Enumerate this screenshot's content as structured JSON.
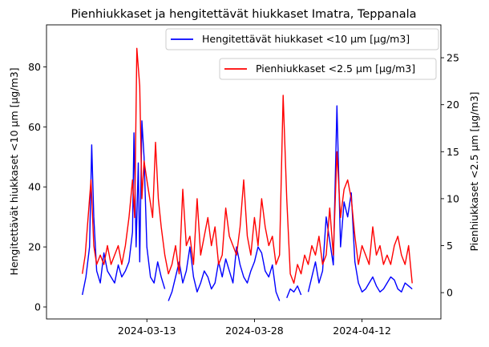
{
  "chart_data": {
    "type": "line",
    "title": "Pienhiukkaset ja hengitettävät hiukkaset Imatra, Teppanala",
    "x_tick_labels": [
      "2024-03-13",
      "2024-03-28",
      "2024-04-12"
    ],
    "left_axis": {
      "label": "Hengitettävät hiukkaset <10 µm [µg/m3]",
      "ylim": [
        -4,
        94
      ],
      "ticks": [
        "0",
        "20",
        "40",
        "60",
        "80"
      ]
    },
    "right_axis": {
      "label": "Pienhiukkaset <2.5 µm [µg/m3]",
      "ylim": [
        -2.8,
        28.5
      ],
      "ticks": [
        "0",
        "5",
        "10",
        "15",
        "20",
        "25"
      ]
    },
    "legend": {
      "pm10_label": "Hengitettävät hiukkaset <10 µm [µg/m3]",
      "pm25_label": "Pienhiukkaset <2.5 µm [µg/m3]",
      "placement": "top-right"
    },
    "colors": {
      "pm10": "#0000ff",
      "pm25": "#ff0000"
    },
    "series": [
      {
        "name": "Hengitettävät hiukkaset <10 µm [µg/m3]",
        "axis": "left",
        "day_offsets": [
          0,
          0.5,
          1,
          1.3,
          1.6,
          2,
          2.5,
          3,
          3.5,
          4,
          4.5,
          5,
          5.5,
          6,
          6.5,
          7,
          7.2,
          7.5,
          7.8,
          8,
          8.3,
          8.6,
          9,
          9.5,
          10,
          10.5,
          11,
          11.5,
          11.7,
          12,
          12.5,
          13,
          13.5,
          14,
          14.5,
          15,
          15.5,
          16,
          16.5,
          17,
          17.5,
          18,
          18.5,
          19,
          19.5,
          20,
          20.5,
          21,
          21.5,
          22,
          22.5,
          23,
          23.5,
          24,
          24.5,
          25,
          25.5,
          26,
          26.5,
          27,
          27.5,
          28,
          28.5,
          29,
          29.5,
          30,
          30.5,
          31,
          31.5,
          32,
          32.5,
          33,
          33.5,
          34,
          34.5,
          35,
          35.5,
          36,
          36.5,
          37,
          37.5,
          38,
          38.5,
          39,
          39.5,
          40,
          40.5,
          41,
          41.5,
          42,
          42.5,
          43,
          43.5,
          44,
          44.5,
          45,
          45.5,
          46
        ],
        "values": [
          4,
          10,
          20,
          54,
          30,
          12,
          8,
          18,
          12,
          10,
          8,
          14,
          10,
          12,
          15,
          25,
          58,
          20,
          48,
          15,
          62,
          50,
          20,
          10,
          8,
          15,
          10,
          6,
          null,
          2,
          5,
          10,
          15,
          8,
          12,
          20,
          10,
          5,
          8,
          12,
          10,
          6,
          8,
          15,
          10,
          16,
          12,
          8,
          20,
          14,
          10,
          8,
          12,
          15,
          20,
          18,
          12,
          10,
          14,
          5,
          2,
          null,
          3,
          6,
          5,
          7,
          4,
          null,
          5,
          10,
          15,
          8,
          12,
          30,
          22,
          14,
          67,
          20,
          35,
          30,
          38,
          15,
          8,
          5,
          6,
          8,
          10,
          7,
          5,
          6,
          8,
          10,
          9,
          6,
          5,
          8,
          7,
          6
        ]
      },
      {
        "name": "Pienhiukkaset <2.5 µm [µg/m3]",
        "axis": "right",
        "day_offsets": [
          0,
          0.4,
          0.8,
          1.2,
          1.6,
          2,
          2.5,
          3,
          3.5,
          4,
          4.5,
          5,
          5.5,
          6,
          6.5,
          7,
          7.3,
          7.6,
          8,
          8.3,
          8.6,
          9,
          9.4,
          9.8,
          10.2,
          10.6,
          11,
          11.5,
          12,
          12.5,
          13,
          13.5,
          14,
          14.5,
          15,
          15.5,
          16,
          16.5,
          17,
          17.5,
          18,
          18.5,
          19,
          19.5,
          20,
          20.5,
          21,
          21.5,
          22,
          22.5,
          23,
          23.5,
          24,
          24.5,
          25,
          25.5,
          26,
          26.5,
          27,
          27.5,
          28,
          28.5,
          29,
          29.5,
          30,
          30.5,
          31,
          31.5,
          32,
          32.5,
          33,
          33.5,
          34,
          34.5,
          35,
          35.5,
          36,
          36.5,
          37,
          37.5,
          38,
          38.5,
          39,
          39.5,
          40,
          40.5,
          41,
          41.5,
          42,
          42.5,
          43,
          43.5,
          44,
          44.5,
          45,
          45.5,
          46
        ],
        "values": [
          2,
          4,
          8,
          12,
          5,
          3,
          4,
          3,
          5,
          3,
          4,
          5,
          3,
          5,
          8,
          12,
          8,
          26,
          22,
          10,
          14,
          12,
          10,
          8,
          16,
          10,
          7,
          4,
          2,
          3,
          5,
          2,
          11,
          5,
          6,
          3,
          10,
          4,
          6,
          8,
          5,
          7,
          3,
          4,
          9,
          6,
          5,
          4,
          7,
          12,
          6,
          4,
          8,
          5,
          10,
          7,
          5,
          6,
          3,
          4,
          21,
          10,
          2,
          1,
          3,
          2,
          4,
          3,
          5,
          4,
          6,
          3,
          4,
          9,
          4,
          15,
          8,
          11,
          12,
          10,
          6,
          3,
          5,
          4,
          3,
          7,
          4,
          5,
          3,
          4,
          3,
          5,
          6,
          4,
          3,
          5,
          1
        ]
      }
    ]
  }
}
